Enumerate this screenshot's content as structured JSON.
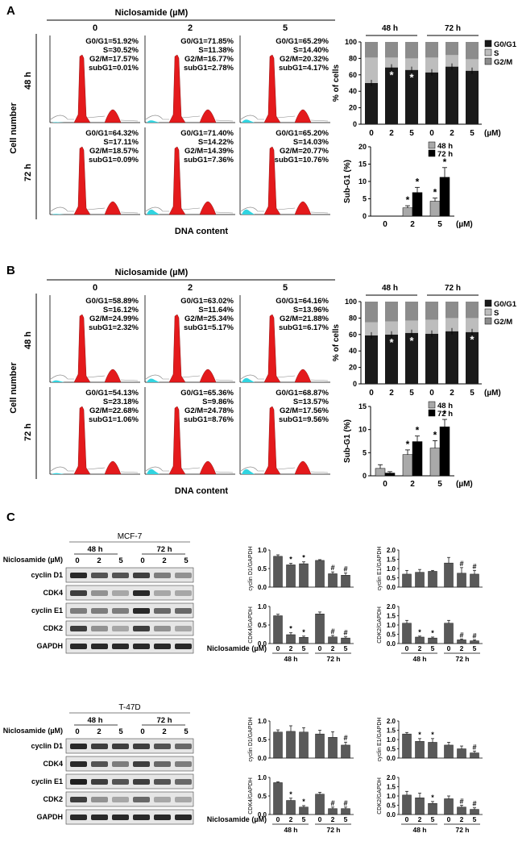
{
  "panels": [
    {
      "letter": "A",
      "treatment_header": "Niclosamide (µM)",
      "doses": [
        "0",
        "2",
        "5"
      ],
      "rows": [
        "48 h",
        "72 h"
      ],
      "y_axis_label": "Cell number",
      "x_axis_label": "DNA content",
      "histograms": [
        [
          [
            "G0/G1=51.92%",
            "S=30.52%",
            "G2/M=17.57%",
            "subG1=0.01%"
          ],
          [
            "G0/G1=71.85%",
            "S=11.38%",
            "G2/M=16.77%",
            "subG1=2.78%"
          ],
          [
            "G0/G1=65.29%",
            "S=14.40%",
            "G2/M=20.32%",
            "subG1=4.17%"
          ]
        ],
        [
          [
            "G0/G1=64.32%",
            "S=17.11%",
            "G2/M=18.57%",
            "subG1=0.09%"
          ],
          [
            "G0/G1=71.40%",
            "S=14.22%",
            "G2/M=14.39%",
            "subG1=7.36%"
          ],
          [
            "G0/G1=65.20%",
            "S=14.03%",
            "G2/M=20.77%",
            "subG1=10.76%"
          ]
        ]
      ],
      "subg1_fill": [
        [
          0.01,
          2.78,
          4.17
        ],
        [
          0.09,
          7.36,
          10.76
        ]
      ],
      "stacked_chart": {
        "group_labels": [
          "48 h",
          "72 h"
        ],
        "x_ticks": [
          "0",
          "2",
          "5",
          "0",
          "2",
          "5"
        ],
        "unit": "(µM)",
        "ylabel": "% of cells",
        "y_ticks": [
          "0",
          "20",
          "40",
          "60",
          "80",
          "100"
        ],
        "legend": [
          "G0/G1",
          "S",
          "G2/M"
        ],
        "g0g1": [
          50,
          69,
          66,
          63,
          70,
          65
        ],
        "s": [
          31,
          12,
          14,
          18,
          14,
          14
        ],
        "g2m": [
          19,
          19,
          20,
          19,
          16,
          21
        ],
        "stars": [
          "",
          "*",
          "*",
          "",
          "",
          ""
        ]
      },
      "subg1_chart": {
        "ylabel": "Sub-G1 (%)",
        "y_ticks": [
          "0",
          "5",
          "10",
          "15",
          "20"
        ],
        "ymax": 20,
        "x_ticks": [
          "0",
          "2",
          "5"
        ],
        "unit": "(µM)",
        "legend": [
          "48 h",
          "72 h"
        ],
        "h48": [
          0,
          2.4,
          4.3
        ],
        "h72": [
          0,
          6.8,
          11.2
        ],
        "err48": [
          0,
          0.6,
          0.9
        ],
        "err72": [
          0,
          1.5,
          2.8
        ],
        "stars48": [
          "",
          "*",
          "*"
        ],
        "stars72": [
          "",
          "*",
          "*"
        ]
      }
    },
    {
      "letter": "B",
      "treatment_header": "Niclosamide (µM)",
      "doses": [
        "0",
        "2",
        "5"
      ],
      "rows": [
        "48 h",
        "72 h"
      ],
      "y_axis_label": "Cell number",
      "x_axis_label": "DNA content",
      "histograms": [
        [
          [
            "G0/G1=58.89%",
            "S=16.12%",
            "G2/M=24.99%",
            "subG1=2.32%"
          ],
          [
            "G0/G1=63.02%",
            "S=11.64%",
            "G2/M=25.34%",
            "subG1=5.17%"
          ],
          [
            "G0/G1=64.16%",
            "S=13.96%",
            "G2/M=21.88%",
            "subG1=6.17%"
          ]
        ],
        [
          [
            "G0/G1=54.13%",
            "S=23.18%",
            "G2/M=22.68%",
            "subG1=1.06%"
          ],
          [
            "G0/G1=65.36%",
            "S=9.86%",
            "G2/M=24.78%",
            "subG1=8.76%"
          ],
          [
            "G0/G1=68.87%",
            "S=13.57%",
            "G2/M=17.56%",
            "subG1=9.56%"
          ]
        ]
      ],
      "subg1_fill": [
        [
          2.32,
          5.17,
          6.17
        ],
        [
          1.06,
          8.76,
          9.56
        ]
      ],
      "stacked_chart": {
        "group_labels": [
          "48 h",
          "72 h"
        ],
        "x_ticks": [
          "0",
          "2",
          "5",
          "0",
          "2",
          "5"
        ],
        "unit": "(µM)",
        "ylabel": "% of cells",
        "y_ticks": [
          "0",
          "20",
          "40",
          "60",
          "80",
          "100"
        ],
        "legend": [
          "G0/G1",
          "S",
          "G2/M"
        ],
        "g0g1": [
          59,
          60,
          62,
          61,
          64,
          63
        ],
        "s": [
          16,
          16,
          15,
          17,
          16,
          17
        ],
        "g2m": [
          25,
          24,
          23,
          22,
          20,
          20
        ],
        "stars": [
          "",
          "*",
          "*",
          "",
          "",
          "*"
        ]
      },
      "subg1_chart": {
        "ylabel": "Sub-G1 (%)",
        "y_ticks": [
          "0",
          "5",
          "10",
          "15"
        ],
        "ymax": 15,
        "x_ticks": [
          "0",
          "2",
          "5"
        ],
        "unit": "(µM)",
        "legend": [
          "48 h",
          "72 h"
        ],
        "h48": [
          1.6,
          4.6,
          6.0
        ],
        "h72": [
          0.6,
          7.4,
          10.6
        ],
        "err48": [
          0.8,
          1.0,
          1.6
        ],
        "err72": [
          0.3,
          1.2,
          1.6
        ],
        "stars48": [
          "",
          "*",
          "*"
        ],
        "stars72": [
          "",
          "*",
          "*"
        ]
      }
    }
  ],
  "panel_c": {
    "letter": "C",
    "blots": [
      {
        "cell_line": "MCF-7",
        "time_labels": [
          "48 h",
          "72 h"
        ],
        "lane_label": "Niclosamide (µM)",
        "lanes": [
          "0",
          "2",
          "5",
          "0",
          "2",
          "5"
        ],
        "proteins": [
          "cyclin D1",
          "CDK4",
          "cyclin E1",
          "CDK2",
          "GAPDH"
        ],
        "intensity": [
          [
            0.9,
            0.7,
            0.7,
            0.8,
            0.5,
            0.4
          ],
          [
            0.8,
            0.4,
            0.3,
            0.9,
            0.3,
            0.3
          ],
          [
            0.5,
            0.5,
            0.5,
            0.9,
            0.6,
            0.6
          ],
          [
            0.8,
            0.4,
            0.3,
            0.8,
            0.4,
            0.3
          ],
          [
            0.9,
            0.9,
            0.9,
            0.9,
            0.9,
            0.9
          ]
        ],
        "charts": [
          {
            "ylabel": "cyclin D1/GAPDH",
            "ymax": 1.0,
            "y_ticks": [
              "0.0",
              "0.5",
              "1.0"
            ],
            "values": [
              0.83,
              0.6,
              0.63,
              0.72,
              0.36,
              0.32
            ],
            "err": [
              0.04,
              0.04,
              0.05,
              0.02,
              0.05,
              0.06
            ],
            "marks": [
              "",
              "*",
              "*",
              "",
              "#",
              "#"
            ]
          },
          {
            "ylabel": "cyclin E1/GAPDH",
            "ymax": 2.0,
            "y_ticks": [
              "0.0",
              "0.5",
              "1.0",
              "1.5",
              "2.0"
            ],
            "values": [
              0.7,
              0.8,
              0.85,
              1.3,
              0.75,
              0.7
            ],
            "err": [
              0.2,
              0.15,
              0.05,
              0.3,
              0.3,
              0.2
            ],
            "marks": [
              "",
              "",
              "",
              "",
              "#",
              "#"
            ]
          },
          {
            "ylabel": "CDK4/GAPDH",
            "ymax": 1.0,
            "y_ticks": [
              "0.0",
              "0.5",
              "1.0"
            ],
            "values": [
              0.75,
              0.24,
              0.17,
              0.8,
              0.18,
              0.15
            ],
            "err": [
              0.04,
              0.05,
              0.03,
              0.05,
              0.04,
              0.03
            ],
            "marks": [
              "",
              "*",
              "*",
              "",
              "#",
              "#"
            ]
          },
          {
            "ylabel": "CDK2/GAPDH",
            "ymax": 2.0,
            "y_ticks": [
              "0.0",
              "0.5",
              "1.0",
              "1.5",
              "2.0"
            ],
            "values": [
              1.1,
              0.35,
              0.3,
              1.1,
              0.2,
              0.15
            ],
            "err": [
              0.15,
              0.05,
              0.05,
              0.15,
              0.05,
              0.05
            ],
            "marks": [
              "",
              "*",
              "*",
              "",
              "#",
              "#"
            ]
          }
        ],
        "x_ticks": [
          "0",
          "2",
          "5",
          "0",
          "2",
          "5"
        ],
        "groups": [
          "48 h",
          "72 h"
        ],
        "chart_lane_label": "Niclosamide (µM)"
      },
      {
        "cell_line": "T-47D",
        "time_labels": [
          "48 h",
          "72 h"
        ],
        "lane_label": "Niclosamide (µM)",
        "lanes": [
          "0",
          "2",
          "5",
          "0",
          "2",
          "5"
        ],
        "proteins": [
          "cyclin D1",
          "CDK4",
          "cyclin E1",
          "CDK2",
          "GAPDH"
        ],
        "intensity": [
          [
            0.9,
            0.8,
            0.8,
            0.8,
            0.7,
            0.6
          ],
          [
            0.9,
            0.7,
            0.5,
            0.8,
            0.6,
            0.5
          ],
          [
            0.95,
            0.8,
            0.7,
            0.8,
            0.7,
            0.6
          ],
          [
            0.8,
            0.4,
            0.3,
            0.6,
            0.3,
            0.3
          ],
          [
            0.9,
            0.9,
            0.9,
            0.9,
            0.9,
            0.9
          ]
        ],
        "charts": [
          {
            "ylabel": "cyclin D1/GAPDH",
            "ymax": 1.0,
            "y_ticks": [
              "0.0",
              "0.5",
              "1.0"
            ],
            "values": [
              0.7,
              0.72,
              0.7,
              0.65,
              0.56,
              0.35
            ],
            "err": [
              0.06,
              0.15,
              0.12,
              0.1,
              0.15,
              0.08
            ],
            "marks": [
              "",
              "",
              "",
              "",
              "",
              "#"
            ]
          },
          {
            "ylabel": "cyclin E1/GAPDH",
            "ymax": 2.0,
            "y_ticks": [
              "0.0",
              "0.5",
              "1.0",
              "1.5",
              "2.0"
            ],
            "values": [
              1.3,
              0.9,
              0.85,
              0.7,
              0.5,
              0.28
            ],
            "err": [
              0.08,
              0.15,
              0.2,
              0.15,
              0.15,
              0.1
            ],
            "marks": [
              "",
              "*",
              "*",
              "",
              "",
              "#"
            ]
          },
          {
            "ylabel": "CDK4/GAPDH",
            "ymax": 1.0,
            "y_ticks": [
              "0.0",
              "0.5",
              "1.0"
            ],
            "values": [
              0.86,
              0.38,
              0.2,
              0.55,
              0.16,
              0.16
            ],
            "err": [
              0.02,
              0.06,
              0.04,
              0.05,
              0.04,
              0.04
            ],
            "marks": [
              "",
              "*",
              "*",
              "",
              "#",
              "#"
            ]
          },
          {
            "ylabel": "CDK2/GAPDH",
            "ymax": 2.0,
            "y_ticks": [
              "0.0",
              "0.5",
              "1.0",
              "1.5",
              "2.0"
            ],
            "values": [
              1.05,
              0.9,
              0.6,
              0.85,
              0.4,
              0.28
            ],
            "err": [
              0.2,
              0.25,
              0.1,
              0.15,
              0.1,
              0.08
            ],
            "marks": [
              "",
              "",
              "*",
              "",
              "#",
              "#"
            ]
          }
        ],
        "x_ticks": [
          "0",
          "2",
          "5",
          "0",
          "2",
          "5"
        ],
        "groups": [
          "48 h",
          "72 h"
        ],
        "chart_lane_label": "Niclosamide (µM)"
      }
    ]
  },
  "colors": {
    "histogram_peak": "#e41a1c",
    "subg1_fill": "#31d4e0",
    "g0g1": "#1a1a1a",
    "s": "#bdbdbd",
    "g2m": "#8c8c8c",
    "bar_48h": "#a9a9a9",
    "bar_72h": "#000000",
    "bar_blot": "#595959"
  }
}
